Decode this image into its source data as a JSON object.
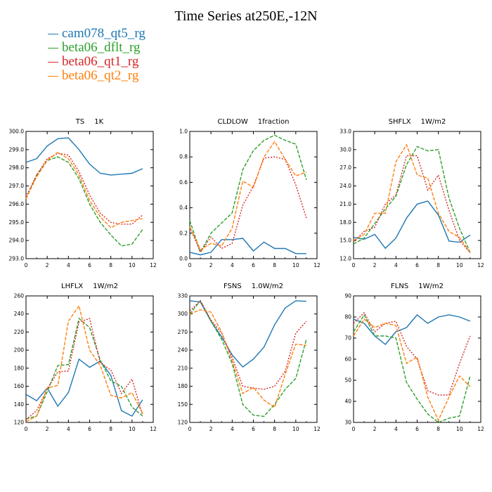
{
  "figure_title": "Time Series at250E,-12N",
  "legend": [
    {
      "label": "cam078_qt5_rg",
      "color": "#1f77b4",
      "dashed": false
    },
    {
      "label": "beta06_dflt_rg",
      "color": "#2ca02c",
      "dashed": true
    },
    {
      "label": "beta06_qt1_rg",
      "color": "#d62728",
      "dashed": true
    },
    {
      "label": "beta06_qt2_rg",
      "color": "#ff7f0e",
      "dashed": true
    }
  ],
  "chart_data": [
    {
      "type": "line",
      "title": "TS",
      "units": "1K",
      "x": [
        0,
        1,
        2,
        3,
        4,
        5,
        6,
        7,
        8,
        9,
        10,
        11
      ],
      "xlim": [
        0,
        12
      ],
      "xticks": [
        0,
        2,
        4,
        6,
        8,
        10,
        12
      ],
      "xtick_labels": [
        "0",
        "2",
        "4",
        "6",
        "8",
        "10",
        "12"
      ],
      "ylim": [
        293,
        300
      ],
      "yticks": [
        293,
        294,
        295,
        296,
        297,
        298,
        299,
        300
      ],
      "ytick_labels": [
        "293.0",
        "294.0",
        "295.0",
        "296.0",
        "297.0",
        "298.0",
        "299.0",
        "300.0"
      ],
      "series": [
        {
          "name": "cam078_qt5_rg",
          "values": [
            298.3,
            298.5,
            299.2,
            299.6,
            299.65,
            299.0,
            298.2,
            297.7,
            297.6,
            297.65,
            297.7,
            297.95
          ]
        },
        {
          "name": "beta06_dflt_rg",
          "values": [
            296.3,
            297.6,
            298.4,
            298.6,
            298.3,
            297.4,
            296.0,
            295.0,
            294.3,
            293.7,
            293.8,
            294.6
          ]
        },
        {
          "name": "beta06_qt1_rg",
          "values": [
            296.4,
            297.6,
            298.5,
            298.8,
            298.7,
            297.8,
            296.5,
            295.5,
            295.0,
            294.9,
            294.9,
            295.4
          ]
        },
        {
          "name": "beta06_qt2_rg",
          "values": [
            296.3,
            297.5,
            298.4,
            298.85,
            298.5,
            297.6,
            296.2,
            295.3,
            294.7,
            295.0,
            295.1,
            295.2
          ]
        }
      ]
    },
    {
      "type": "line",
      "title": "CLDLOW",
      "units": "1fraction",
      "x": [
        0,
        1,
        2,
        3,
        4,
        5,
        6,
        7,
        8,
        9,
        10,
        11
      ],
      "xlim": [
        0,
        12
      ],
      "xticks": [
        0,
        2,
        4,
        6,
        8,
        10,
        12
      ],
      "xtick_labels": [
        "0",
        "2",
        "4",
        "6",
        "8",
        "10",
        "12"
      ],
      "ylim": [
        0,
        1
      ],
      "yticks": [
        0,
        0.2,
        0.4,
        0.6,
        0.8,
        1.0
      ],
      "ytick_labels": [
        "0.0",
        "0.2",
        "0.4",
        "0.6",
        "0.8",
        "1.0"
      ],
      "series": [
        {
          "name": "cam078_qt5_rg",
          "values": [
            0.05,
            0.03,
            0.05,
            0.15,
            0.15,
            0.16,
            0.06,
            0.13,
            0.08,
            0.08,
            0.04,
            0.04
          ]
        },
        {
          "name": "beta06_dflt_rg",
          "values": [
            0.3,
            0.05,
            0.2,
            0.28,
            0.36,
            0.7,
            0.85,
            0.93,
            0.97,
            0.93,
            0.9,
            0.62
          ]
        },
        {
          "name": "beta06_qt1_rg",
          "values": [
            0.25,
            0.05,
            0.17,
            0.08,
            0.12,
            0.42,
            0.57,
            0.79,
            0.8,
            0.78,
            0.58,
            0.32
          ]
        },
        {
          "name": "beta06_qt2_rg",
          "values": [
            0.25,
            0.07,
            0.12,
            0.1,
            0.24,
            0.61,
            0.56,
            0.8,
            0.92,
            0.78,
            0.65,
            0.68
          ]
        }
      ]
    },
    {
      "type": "line",
      "title": "SHFLX",
      "units": "1W/m2",
      "x": [
        0,
        1,
        2,
        3,
        4,
        5,
        6,
        7,
        8,
        9,
        10,
        11
      ],
      "xlim": [
        0,
        12
      ],
      "xticks": [
        0,
        2,
        4,
        6,
        8,
        10,
        12
      ],
      "xtick_labels": [
        "0",
        "2",
        "4",
        "6",
        "8",
        "10",
        "12"
      ],
      "ylim": [
        12,
        33
      ],
      "yticks": [
        12,
        15,
        18,
        21,
        24,
        27,
        30,
        33
      ],
      "ytick_labels": [
        "12.0",
        "15.0",
        "18.0",
        "21.0",
        "24.0",
        "27.0",
        "30.0",
        "33.0"
      ],
      "series": [
        {
          "name": "cam078_qt5_rg",
          "values": [
            15.5,
            15.2,
            16.0,
            13.7,
            15.4,
            18.7,
            21.0,
            21.5,
            19.2,
            14.9,
            14.7,
            15.9
          ]
        },
        {
          "name": "beta06_dflt_rg",
          "values": [
            14.4,
            15.4,
            17.8,
            20.2,
            22.3,
            27.5,
            30.5,
            29.8,
            30.0,
            22.0,
            17.0,
            13.0
          ]
        },
        {
          "name": "beta06_qt1_rg",
          "values": [
            14.8,
            16.5,
            17.2,
            21.0,
            22.5,
            29.0,
            29.0,
            23.3,
            25.8,
            20.0,
            15.0,
            13.0
          ]
        },
        {
          "name": "beta06_qt2_rg",
          "values": [
            15.0,
            16.0,
            19.5,
            19.5,
            28.0,
            30.8,
            25.8,
            25.3,
            19.5,
            16.5,
            15.5,
            13.0
          ]
        }
      ]
    },
    {
      "type": "line",
      "title": "LHFLX",
      "units": "1W/m2",
      "x": [
        0,
        1,
        2,
        3,
        4,
        5,
        6,
        7,
        8,
        9,
        10,
        11
      ],
      "xlim": [
        0,
        12
      ],
      "xticks": [
        0,
        2,
        4,
        6,
        8,
        10,
        12
      ],
      "xtick_labels": [
        "0",
        "2",
        "4",
        "6",
        "8",
        "10",
        "12"
      ],
      "ylim": [
        120,
        260
      ],
      "yticks": [
        120,
        140,
        160,
        180,
        200,
        220,
        240,
        260
      ],
      "ytick_labels": [
        "120",
        "140",
        "160",
        "180",
        "200",
        "220",
        "240",
        "260"
      ],
      "series": [
        {
          "name": "cam078_qt5_rg",
          "values": [
            151,
            144,
            158,
            138,
            153,
            190,
            181,
            188,
            172,
            133,
            127,
            145
          ]
        },
        {
          "name": "beta06_dflt_rg",
          "values": [
            124,
            127,
            154,
            183,
            184,
            235,
            225,
            189,
            166,
            160,
            137,
            127
          ]
        },
        {
          "name": "beta06_qt1_rg",
          "values": [
            123,
            133,
            157,
            176,
            177,
            231,
            235,
            186,
            178,
            152,
            168,
            128
          ]
        },
        {
          "name": "beta06_qt2_rg",
          "values": [
            121,
            127,
            158,
            161,
            232,
            249,
            200,
            183,
            150,
            147,
            153,
            130
          ]
        }
      ]
    },
    {
      "type": "line",
      "title": "FSNS",
      "units": "1.0W/m2",
      "x": [
        0,
        1,
        2,
        3,
        4,
        5,
        6,
        7,
        8,
        9,
        10,
        11
      ],
      "xlim": [
        0,
        12
      ],
      "xticks": [
        0,
        2,
        4,
        6,
        8,
        10,
        12
      ],
      "xtick_labels": [
        "0",
        "2",
        "4",
        "6",
        "8",
        "10",
        "12"
      ],
      "ylim": [
        120,
        330
      ],
      "yticks": [
        120,
        150,
        180,
        210,
        240,
        270,
        300,
        330
      ],
      "ytick_labels": [
        "120",
        "150",
        "180",
        "210",
        "240",
        "270",
        "300",
        "330"
      ],
      "series": [
        {
          "name": "cam078_qt5_rg",
          "values": [
            322,
            320,
            288,
            262,
            232,
            212,
            225,
            245,
            282,
            310,
            322,
            321
          ]
        },
        {
          "name": "beta06_dflt_rg",
          "values": [
            300,
            322,
            288,
            258,
            218,
            150,
            132,
            130,
            150,
            175,
            193,
            258
          ]
        },
        {
          "name": "beta06_qt1_rg",
          "values": [
            305,
            322,
            290,
            268,
            228,
            180,
            177,
            175,
            180,
            205,
            268,
            288
          ]
        },
        {
          "name": "beta06_qt2_rg",
          "values": [
            300,
            307,
            303,
            270,
            222,
            168,
            178,
            157,
            145,
            200,
            250,
            248
          ]
        }
      ]
    },
    {
      "type": "line",
      "title": "FLNS",
      "units": "1W/m2",
      "x": [
        0,
        1,
        2,
        3,
        4,
        5,
        6,
        7,
        8,
        9,
        10,
        11
      ],
      "xlim": [
        0,
        12
      ],
      "xticks": [
        0,
        2,
        4,
        6,
        8,
        10,
        12
      ],
      "xtick_labels": [
        "0",
        "2",
        "4",
        "6",
        "8",
        "10",
        "12"
      ],
      "ylim": [
        30,
        90
      ],
      "yticks": [
        30,
        40,
        50,
        60,
        70,
        80,
        90
      ],
      "ytick_labels": [
        "30",
        "40",
        "50",
        "60",
        "70",
        "80",
        "90"
      ],
      "series": [
        {
          "name": "cam078_qt5_rg",
          "values": [
            79,
            77,
            71,
            67,
            73,
            75,
            81,
            77,
            80,
            81,
            80,
            78
          ]
        },
        {
          "name": "beta06_dflt_rg",
          "values": [
            73,
            81,
            71,
            71,
            70,
            49,
            41,
            34,
            30,
            32,
            33,
            52
          ]
        },
        {
          "name": "beta06_qt1_rg",
          "values": [
            77,
            82,
            73,
            77,
            78,
            66,
            60,
            45,
            43,
            43,
            58,
            71
          ]
        },
        {
          "name": "beta06_qt2_rg",
          "values": [
            71,
            79,
            75,
            77,
            76,
            58,
            61,
            42,
            31,
            42,
            52,
            47
          ]
        }
      ]
    }
  ]
}
